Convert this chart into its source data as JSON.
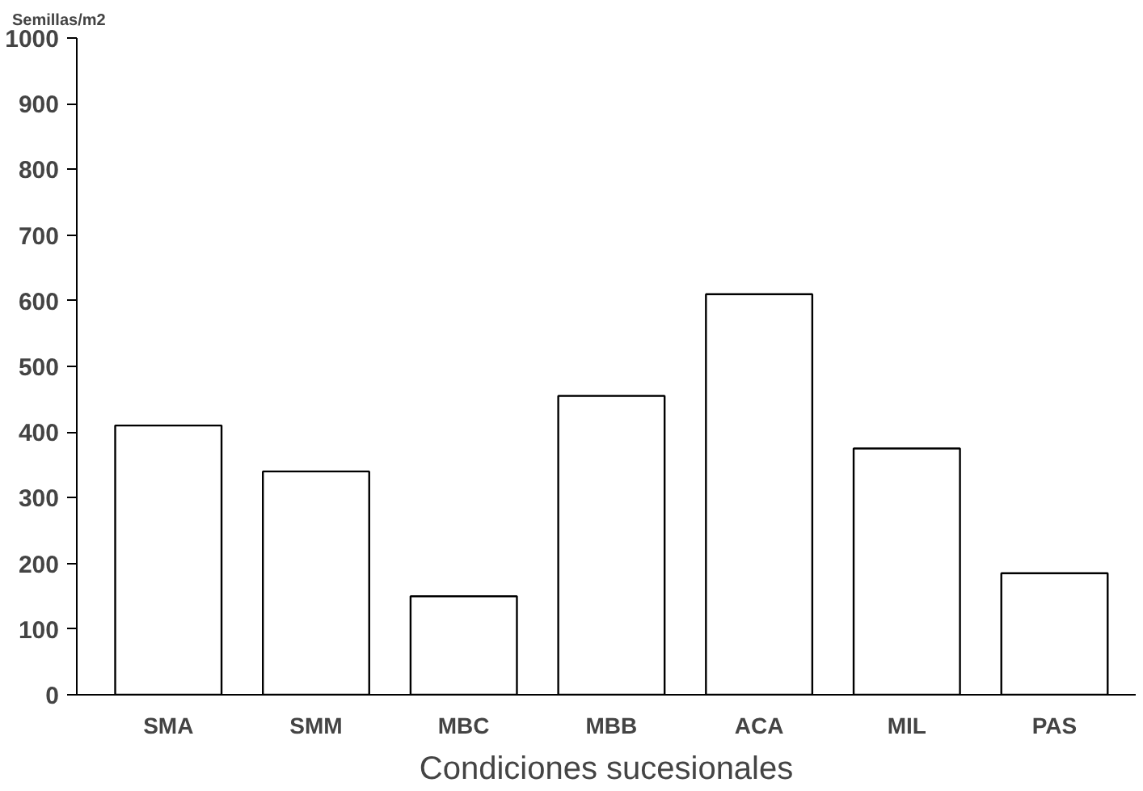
{
  "chart_data": {
    "type": "bar",
    "ylabel": "Semillas/m2",
    "xlabel": "Condiciones sucesionales",
    "categories": [
      "SMA",
      "SMM",
      "MBC",
      "MBB",
      "ACA",
      "MIL",
      "PAS"
    ],
    "values": [
      410,
      340,
      150,
      455,
      610,
      375,
      185
    ],
    "color": "#ffffff",
    "ylim": [
      0,
      1000
    ],
    "yticks": [
      0,
      100,
      200,
      300,
      400,
      500,
      600,
      700,
      800,
      900,
      1000
    ],
    "grid": false
  }
}
